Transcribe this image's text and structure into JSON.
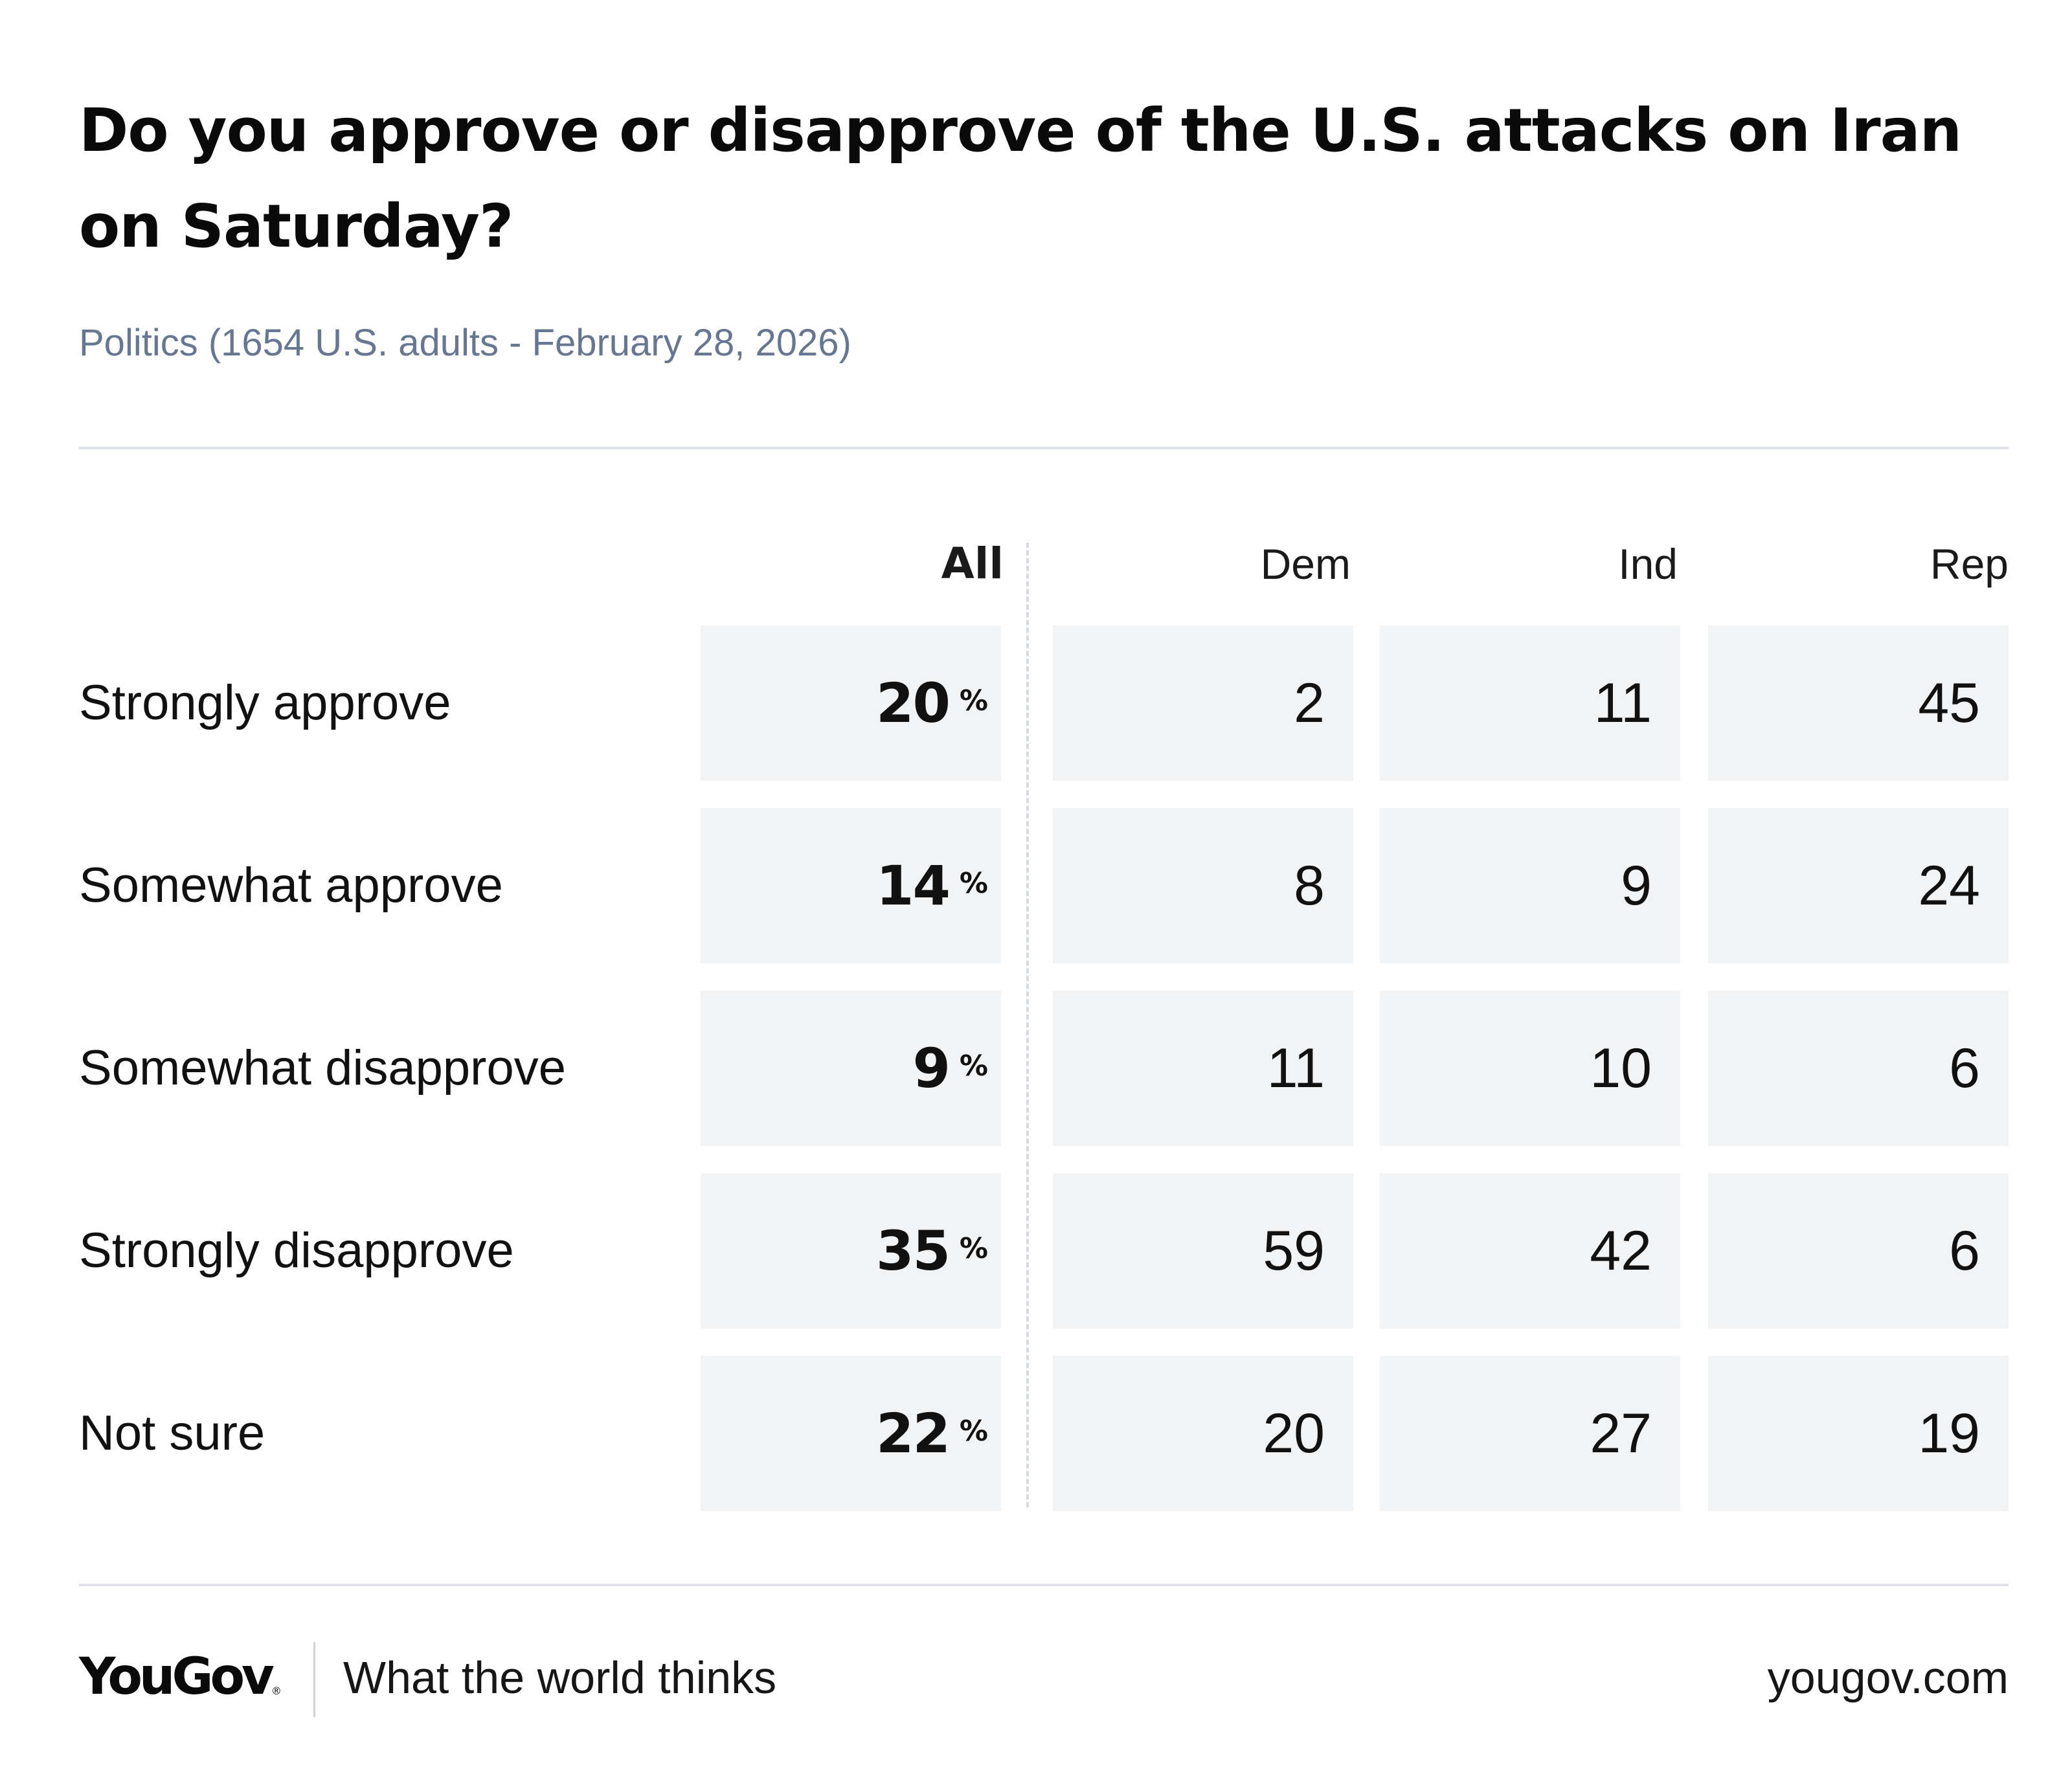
{
  "chart_data": {
    "type": "table",
    "title": "Do you approve or disapprove of the U.S. attacks on Iran on Saturday?",
    "subtitle": "Politics (1654 U.S. adults - February 28, 2026)",
    "columns": [
      "All",
      "Dem",
      "Ind",
      "Rep"
    ],
    "percent_symbol": "%",
    "rows": [
      {
        "label": "Strongly approve",
        "all": "20",
        "dem": "2",
        "ind": "11",
        "rep": "45"
      },
      {
        "label": "Somewhat approve",
        "all": "14",
        "dem": "8",
        "ind": "9",
        "rep": "24"
      },
      {
        "label": "Somewhat disapprove",
        "all": "9",
        "dem": "11",
        "ind": "10",
        "rep": "6"
      },
      {
        "label": "Strongly disapprove",
        "all": "35",
        "dem": "59",
        "ind": "42",
        "rep": "6"
      },
      {
        "label": "Not sure",
        "all": "22",
        "dem": "20",
        "ind": "27",
        "rep": "19"
      }
    ]
  },
  "footer": {
    "brand": "YouGov",
    "registered_mark": "®",
    "tagline": "What the world thinks",
    "website": "yougov.com"
  },
  "colors": {
    "cell_background": "#f2f3f5",
    "subtitle": "#677791",
    "rule": "#dfe2e8"
  }
}
